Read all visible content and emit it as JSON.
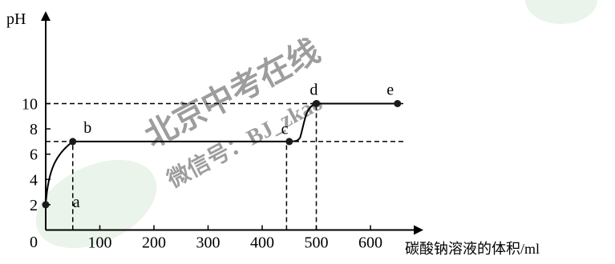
{
  "chart_data": {
    "type": "line",
    "title": "",
    "xlabel": "碳酸钠溶液的体积/ml",
    "ylabel": "pH",
    "origin_label": "0",
    "xlim": [
      0,
      680
    ],
    "ylim": [
      0,
      12
    ],
    "x_ticks": [
      100,
      200,
      300,
      400,
      500,
      600
    ],
    "y_ticks": [
      2,
      4,
      6,
      8,
      10
    ],
    "series": [
      {
        "x": [
          0,
          20,
          50,
          450,
          470,
          500,
          650
        ],
        "y": [
          2,
          5.4,
          7,
          7,
          7.3,
          10,
          10
        ]
      }
    ],
    "points": [
      {
        "label": "a",
        "x": 0,
        "y": 2,
        "label_x": 50,
        "label_y": 1.8
      },
      {
        "label": "b",
        "x": 50,
        "y": 7,
        "label_x": 70,
        "label_y": 7.7
      },
      {
        "label": "c",
        "x": 450,
        "y": 7,
        "label_x": 435,
        "label_y": 7.6
      },
      {
        "label": "d",
        "x": 500,
        "y": 10,
        "label_x": 488,
        "label_y": 10.7
      },
      {
        "label": "e",
        "x": 650,
        "y": 10,
        "label_x": 630,
        "label_y": 10.7
      }
    ],
    "reference_lines": [
      {
        "orientation": "horizontal",
        "y": 10,
        "x_from": 0,
        "x_to": 665
      },
      {
        "orientation": "horizontal",
        "y": 7,
        "x_from": 0,
        "x_to": 665
      },
      {
        "orientation": "vertical",
        "x": 50,
        "y_from": 0,
        "y_to": 7
      },
      {
        "orientation": "vertical",
        "x": 445,
        "y_from": 0,
        "y_to": 7
      },
      {
        "orientation": "vertical",
        "x": 500,
        "y_from": 0,
        "y_to": 10
      }
    ],
    "watermark": {
      "line1": "北京中考在线",
      "line2": "微信号：BJ_zkao",
      "color": "#4caf50"
    }
  }
}
